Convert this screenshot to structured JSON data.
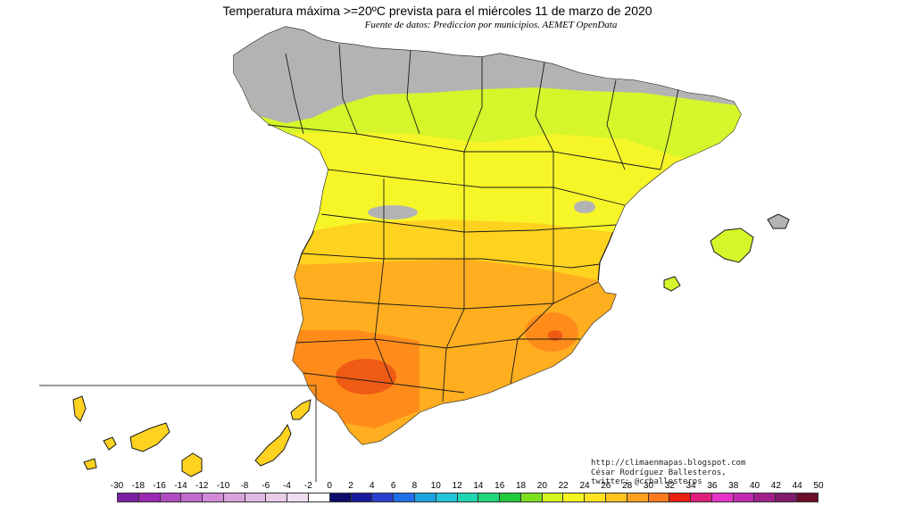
{
  "title": "Temperatura máxima >=20ºC prevista para el miércoles 11 de marzo de 2020",
  "subtitle": "Fuente de datos: Prediccion por municipios. AEMET OpenData",
  "credits": {
    "blog": "http://climaenmapas.blogspot.com",
    "author": "César Rodríguez Ballesteros, twitter: @crballesteros"
  },
  "scale": {
    "labels": [
      "-30",
      "-18",
      "-16",
      "-14",
      "-12",
      "-10",
      "-8",
      "-6",
      "-4",
      "-2",
      "0",
      "2",
      "4",
      "6",
      "8",
      "10",
      "12",
      "14",
      "16",
      "18",
      "20",
      "22",
      "24",
      "26",
      "28",
      "30",
      "32",
      "34",
      "36",
      "38",
      "40",
      "42",
      "44",
      "50"
    ],
    "colors": [
      "#7b1fa2",
      "#9c27b0",
      "#b04cc1",
      "#c36ad0",
      "#d08ad8",
      "#d9a3dd",
      "#e0b8e2",
      "#e8cbe9",
      "#efdcef",
      "#ffffff",
      "#0d0d6b",
      "#1a1a9c",
      "#2a3fd0",
      "#1f6fe8",
      "#1aa3e0",
      "#22c4d8",
      "#1fd6b0",
      "#1fd67a",
      "#22c93c",
      "#7be01f",
      "#d5f51f",
      "#f5f51f",
      "#ffe21f",
      "#ffc21f",
      "#ffa01f",
      "#ff7a1f",
      "#e8200f",
      "#e01f7b",
      "#e632c8",
      "#c02ab0",
      "#a0208c",
      "#801a6b",
      "#6b0f2a"
    ]
  },
  "colors": {
    "gray": "#b3b3b3",
    "yellow_green": "#d6f52a",
    "yellow": "#f6f528",
    "light_orange": "#ffd21f",
    "orange": "#ffae1f",
    "deep_orange": "#ff8c1a",
    "red_orange": "#ef5a14",
    "border": "#1a1a1a"
  }
}
